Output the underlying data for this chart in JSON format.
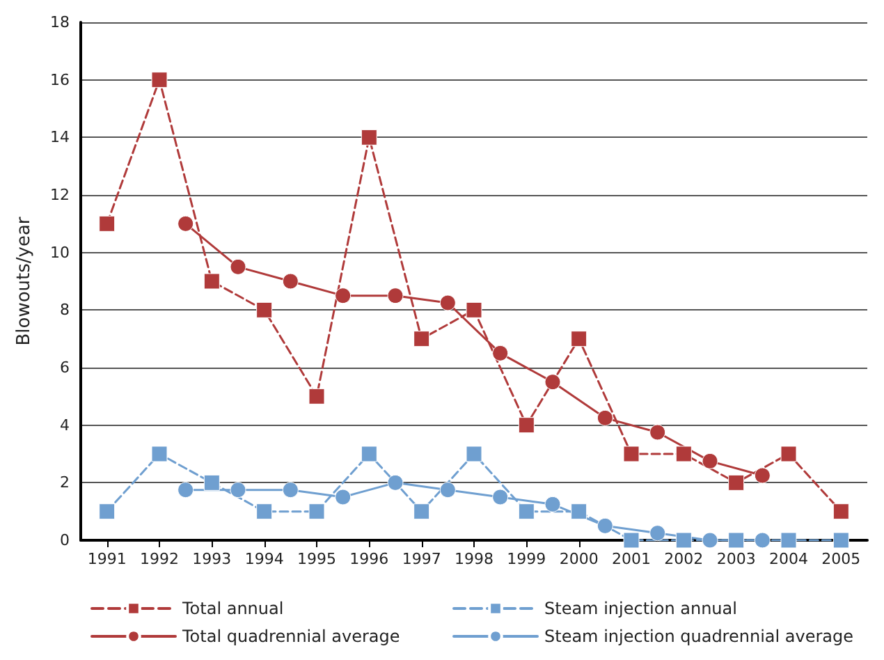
{
  "chart_data": {
    "type": "line",
    "ylabel": "Blowouts/year",
    "xlim": [
      1990.5,
      2005.5
    ],
    "xticks": [
      1991,
      1992,
      1993,
      1994,
      1995,
      1996,
      1997,
      1998,
      1999,
      2000,
      2001,
      2002,
      2003,
      2004,
      2005
    ],
    "ylim": [
      0,
      18
    ],
    "yticks": [
      0,
      2,
      4,
      6,
      8,
      10,
      12,
      14,
      16,
      18
    ],
    "grid": "y",
    "legend": "bottom",
    "series": [
      {
        "name": "Total annual",
        "color": "#b03a3a",
        "marker": "square",
        "line_style": "dashed",
        "x": [
          1991,
          1992,
          1993,
          1994,
          1995,
          1996,
          1997,
          1998,
          1999,
          2000,
          2001,
          2002,
          2003,
          2004,
          2005
        ],
        "values": [
          11,
          16,
          9,
          8,
          5,
          14,
          7,
          8,
          4,
          7,
          3,
          3,
          2,
          3,
          1
        ]
      },
      {
        "name": "Steam injection annual",
        "color": "#6f9fd0",
        "marker": "square",
        "line_style": "dashed",
        "x": [
          1991,
          1992,
          1993,
          1994,
          1995,
          1996,
          1997,
          1998,
          1999,
          2000,
          2001,
          2002,
          2003,
          2004,
          2005
        ],
        "values": [
          1,
          3,
          2,
          1,
          1,
          3,
          1,
          3,
          1,
          1,
          0,
          0,
          0,
          0,
          0
        ]
      },
      {
        "name": "Total quadrennial average",
        "color": "#b03a3a",
        "marker": "circle",
        "line_style": "solid",
        "x": [
          1992.5,
          1993.5,
          1994.5,
          1995.5,
          1996.5,
          1997.5,
          1998.5,
          1999.5,
          2000.5,
          2001.5,
          2002.5,
          2003.5
        ],
        "values": [
          11,
          9.5,
          9,
          8.5,
          8.5,
          8.25,
          6.5,
          5.5,
          4.25,
          3.75,
          2.75,
          2.25
        ]
      },
      {
        "name": "Steam injection quadrennial average",
        "color": "#6f9fd0",
        "marker": "circle",
        "line_style": "solid",
        "x": [
          1992.5,
          1993.5,
          1994.5,
          1995.5,
          1996.5,
          1997.5,
          1998.5,
          1999.5,
          2000.5,
          2001.5,
          2002.5,
          2003.5
        ],
        "values": [
          1.75,
          1.75,
          1.75,
          1.5,
          2,
          1.75,
          1.5,
          1.25,
          0.5,
          0.25,
          0,
          0
        ]
      }
    ]
  }
}
